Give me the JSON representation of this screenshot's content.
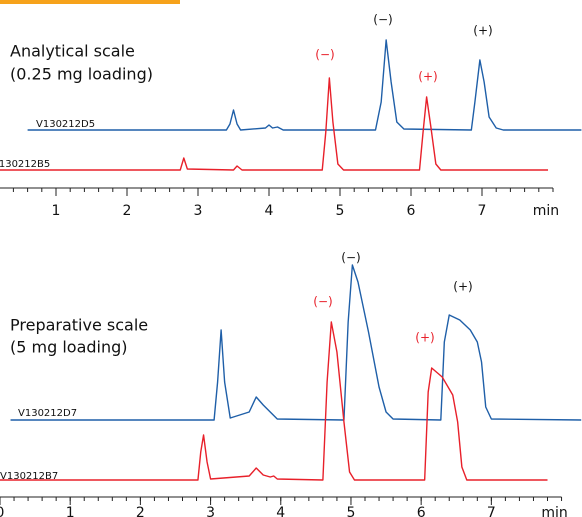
{
  "chart_data": [
    {
      "type": "line",
      "title": "Analytical scale",
      "subtitle": "(0.25 mg loading)",
      "x_label": "min",
      "xlim": [
        0,
        8.4
      ],
      "ylim": [
        0,
        140
      ],
      "xticks": [
        1,
        2,
        3,
        4,
        5,
        6,
        7
      ],
      "annotations": [
        {
          "text": "(−)",
          "color": "#e8202a"
        },
        {
          "text": "(−)",
          "color": "#111111"
        },
        {
          "text": "(+)",
          "color": "#e8202a"
        },
        {
          "text": "(+)",
          "color": "#111111"
        }
      ],
      "series": [
        {
          "name": "V130212D5",
          "color": "#1f5fa8",
          "x": [
            0.6,
            3.4,
            3.45,
            3.5,
            3.55,
            3.6,
            3.95,
            4.0,
            4.05,
            4.12,
            4.2,
            5.5,
            5.58,
            5.65,
            5.72,
            5.8,
            5.9,
            6.85,
            6.9,
            6.97,
            7.03,
            7.1,
            7.2,
            7.3,
            8.4
          ],
          "values": [
            42,
            42,
            48,
            62,
            48,
            42,
            44,
            47,
            44,
            45,
            42,
            42,
            70,
            132,
            90,
            50,
            43,
            42,
            70,
            112,
            90,
            55,
            44,
            42,
            42
          ]
        },
        {
          "name": "V130212B5",
          "color": "#e8202a",
          "x": [
            0.2,
            2.75,
            2.8,
            2.85,
            3.5,
            3.55,
            3.62,
            4.75,
            4.8,
            4.85,
            4.9,
            4.97,
            5.05,
            6.12,
            6.17,
            6.22,
            6.28,
            6.35,
            6.42,
            7.93
          ],
          "values": [
            2,
            2,
            14,
            3,
            2,
            6,
            2,
            2,
            40,
            94,
            50,
            8,
            2,
            2,
            40,
            75,
            45,
            8,
            2,
            2
          ]
        }
      ]
    },
    {
      "type": "line",
      "title": "Preparative scale",
      "subtitle": "(5 mg loading)",
      "x_label": "min",
      "xlim": [
        0,
        8.28
      ],
      "ylim": [
        0,
        220
      ],
      "xticks": [
        0,
        1,
        2,
        3,
        4,
        5,
        6,
        7
      ],
      "annotations": [
        {
          "text": "(−)",
          "color": "#111111"
        },
        {
          "text": "(−)",
          "color": "#e8202a"
        },
        {
          "text": "(+)",
          "color": "#111111"
        },
        {
          "text": "(+)",
          "color": "#e8202a"
        }
      ],
      "series": [
        {
          "name": "V130212D7",
          "color": "#1f5fa8",
          "x": [
            0.15,
            3.05,
            3.1,
            3.15,
            3.2,
            3.28,
            3.55,
            3.65,
            3.75,
            3.85,
            3.95,
            4.9,
            4.96,
            5.02,
            5.1,
            5.25,
            5.4,
            5.5,
            5.6,
            6.28,
            6.33,
            6.4,
            6.55,
            6.7,
            6.8,
            6.86,
            6.92,
            7.0,
            8.28
          ],
          "values": [
            62,
            62,
            100,
            152,
            100,
            64,
            70,
            85,
            77,
            70,
            63,
            62,
            160,
            217,
            200,
            150,
            95,
            70,
            63,
            62,
            140,
            167,
            162,
            152,
            140,
            120,
            75,
            63,
            62
          ]
        },
        {
          "name": "V130212B7",
          "color": "#e8202a",
          "x": [
            0,
            2.82,
            2.86,
            2.9,
            2.95,
            3.0,
            3.55,
            3.65,
            3.75,
            3.85,
            3.9,
            3.95,
            4.6,
            4.66,
            4.72,
            4.8,
            4.9,
            4.98,
            5.05,
            6.05,
            6.1,
            6.15,
            6.3,
            6.45,
            6.52,
            6.58,
            6.65,
            7.8
          ],
          "values": [
            2,
            2,
            30,
            47,
            20,
            3,
            6,
            14,
            7,
            5,
            6,
            3,
            2,
            100,
            160,
            130,
            60,
            10,
            2,
            2,
            90,
            114,
            105,
            87,
            60,
            15,
            2,
            2
          ]
        }
      ]
    }
  ]
}
